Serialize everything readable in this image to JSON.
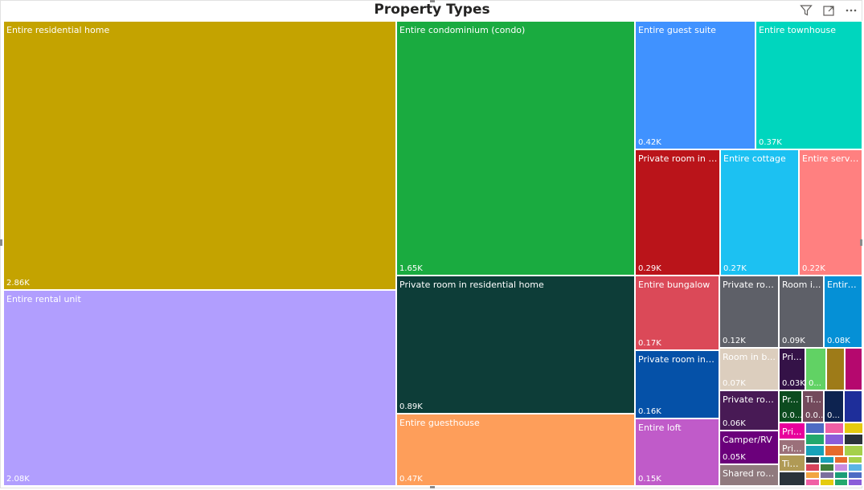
{
  "visual": {
    "title": "Property Types",
    "filter_icon": "filter-icon",
    "focus_icon": "focus-mode-icon",
    "more_icon": "more-options-icon"
  },
  "chart_data": {
    "type": "treemap",
    "title": "Property Types",
    "unit": "K",
    "items": [
      {
        "label": "Entire residential home",
        "value_label": "2.86K",
        "value": 2.86,
        "color": "#C4A300"
      },
      {
        "label": "Entire rental unit",
        "value_label": "2.08K",
        "value": 2.08,
        "color": "#B19EFE"
      },
      {
        "label": "Entire condominium (condo)",
        "value_label": "1.65K",
        "value": 1.65,
        "color": "#1AAB40"
      },
      {
        "label": "Private room in residential home",
        "value_label": "0.89K",
        "value": 0.89,
        "color": "#0D3D38"
      },
      {
        "label": "Entire guesthouse",
        "value_label": "0.47K",
        "value": 0.47,
        "color": "#FE9E5A"
      },
      {
        "label": "Entire guest suite",
        "value_label": "0.42K",
        "value": 0.42,
        "color": "#4092FF"
      },
      {
        "label": "Entire townhouse",
        "value_label": "0.37K",
        "value": 0.37,
        "color": "#00D6BE"
      },
      {
        "label": "Private room in re...",
        "value_label": "0.29K",
        "value": 0.29,
        "color": "#BA141A"
      },
      {
        "label": "Entire cottage",
        "value_label": "0.27K",
        "value": 0.27,
        "color": "#1CC1F2"
      },
      {
        "label": "Entire servic...",
        "value_label": "0.22K",
        "value": 0.22,
        "color": "#FF8080"
      },
      {
        "label": "Entire bungalow",
        "value_label": "0.17K",
        "value": 0.17,
        "color": "#DB4958"
      },
      {
        "label": "Private room in c...",
        "value_label": "0.16K",
        "value": 0.16,
        "color": "#0551A8"
      },
      {
        "label": "Entire loft",
        "value_label": "0.15K",
        "value": 0.15,
        "color": "#C05BC9"
      },
      {
        "label": "Private roo...",
        "value_label": "0.12K",
        "value": 0.12,
        "color": "#5E6068"
      },
      {
        "label": "Room i...",
        "value_label": "0.09K",
        "value": 0.09,
        "color": "#5E6068"
      },
      {
        "label": "Entire...",
        "value_label": "0.08K",
        "value": 0.08,
        "color": "#0590D6"
      },
      {
        "label": "Room in b...",
        "value_label": "0.07K",
        "value": 0.07,
        "color": "#DCCEBE"
      },
      {
        "label": "Private roo...",
        "value_label": "0.06K",
        "value": 0.06,
        "color": "#481A55"
      },
      {
        "label": "Camper/RV",
        "value_label": "0.05K",
        "value": 0.05,
        "color": "#6B007B"
      },
      {
        "label": "Shared roo...",
        "value_label": "",
        "value": 0.04,
        "color": "#907A7E"
      },
      {
        "label": "Pri...",
        "value_label": "0.03K",
        "value": 0.03,
        "color": "#341247"
      },
      {
        "label": "",
        "value_label": "0...",
        "value": 0.03,
        "color": "#61D264"
      },
      {
        "label": "",
        "value_label": "",
        "value": 0.03,
        "color": "#9E7B18"
      },
      {
        "label": "",
        "value_label": "",
        "value": 0.03,
        "color": "#B5086E"
      },
      {
        "label": "Pr...",
        "value_label": "0.0...",
        "value": 0.02,
        "color": "#0C4B1F"
      },
      {
        "label": "Ti...",
        "value_label": "0.0...",
        "value": 0.02,
        "color": "#734A5C"
      },
      {
        "label": "",
        "value_label": "0...",
        "value": 0.02,
        "color": "#0D2350"
      },
      {
        "label": "",
        "value_label": "",
        "value": 0.02,
        "color": "#1E2E9A"
      },
      {
        "label": "Pri...",
        "value_label": "",
        "value": 0.02,
        "color": "#E8009C"
      },
      {
        "label": "Pri...",
        "value_label": "",
        "value": 0.02,
        "color": "#9B707A"
      },
      {
        "label": "Tin...",
        "value_label": "",
        "value": 0.02,
        "color": "#B09A55"
      },
      {
        "label": "",
        "value_label": "",
        "value": 0.01,
        "color": "#2A333A"
      }
    ]
  }
}
